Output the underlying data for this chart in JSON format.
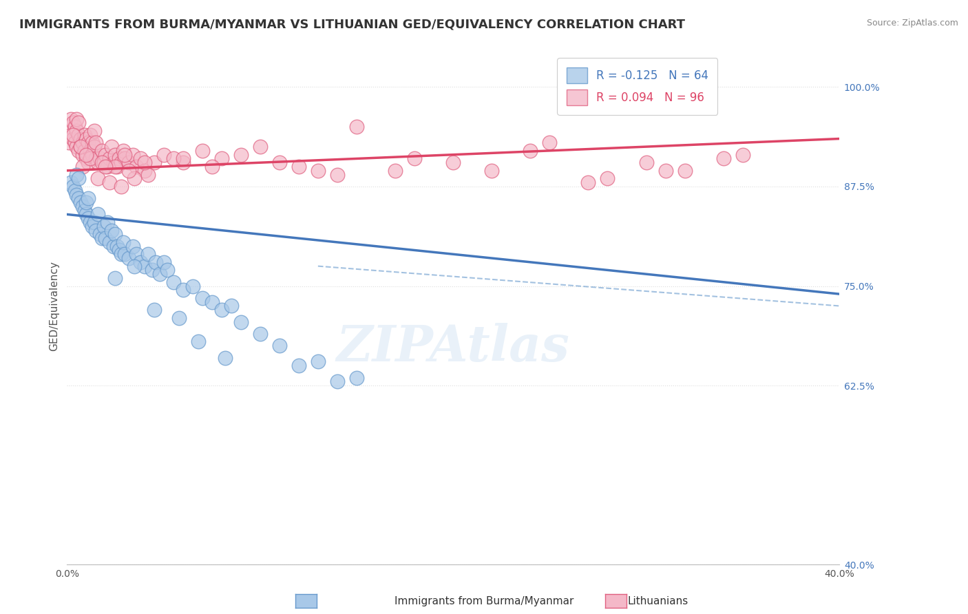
{
  "title": "IMMIGRANTS FROM BURMA/MYANMAR VS LITHUANIAN GED/EQUIVALENCY CORRELATION CHART",
  "source_text": "Source: ZipAtlas.com",
  "ylabel": "GED/Equivalency",
  "xlim": [
    0.0,
    40.0
  ],
  "ylim": [
    40.0,
    105.0
  ],
  "yticks": [
    40.0,
    62.5,
    75.0,
    87.5,
    100.0
  ],
  "ytick_labels": [
    "40.0%",
    "62.5%",
    "75.0%",
    "87.5%",
    "100.0%"
  ],
  "xticks": [
    0.0,
    10.0,
    20.0,
    30.0,
    40.0
  ],
  "xtick_labels": [
    "0.0%",
    "",
    "",
    "",
    "40.0%"
  ],
  "blue_color": "#a8c8e8",
  "pink_color": "#f4b8c8",
  "blue_edge_color": "#6699cc",
  "pink_edge_color": "#e06080",
  "blue_line_color": "#4477bb",
  "pink_line_color": "#dd4466",
  "background_color": "#ffffff",
  "grid_color": "#dddddd",
  "title_fontsize": 13,
  "axis_fontsize": 11,
  "tick_fontsize": 10,
  "watermark_text": "ZIPAtlas",
  "blue_line_x0": 0.0,
  "blue_line_y0": 84.0,
  "blue_line_x1": 40.0,
  "blue_line_y1": 74.0,
  "pink_line_x0": 0.0,
  "pink_line_y0": 89.5,
  "pink_line_x1": 40.0,
  "pink_line_y1": 93.5,
  "dash_line_x0": 13.0,
  "dash_line_y0": 77.5,
  "dash_line_x1": 40.0,
  "dash_line_y1": 72.5,
  "blue_scatter_x": [
    0.2,
    0.3,
    0.4,
    0.5,
    0.5,
    0.6,
    0.6,
    0.7,
    0.8,
    0.9,
    1.0,
    1.0,
    1.1,
    1.1,
    1.2,
    1.3,
    1.4,
    1.5,
    1.6,
    1.7,
    1.8,
    1.9,
    2.0,
    2.1,
    2.2,
    2.3,
    2.4,
    2.5,
    2.6,
    2.7,
    2.8,
    2.9,
    3.0,
    3.2,
    3.4,
    3.6,
    3.8,
    4.0,
    4.2,
    4.4,
    4.6,
    4.8,
    5.0,
    5.2,
    5.5,
    6.0,
    6.5,
    7.0,
    7.5,
    8.0,
    8.5,
    9.0,
    10.0,
    11.0,
    12.0,
    13.0,
    14.0,
    15.0,
    2.5,
    3.5,
    4.5,
    5.8,
    6.8,
    8.2
  ],
  "blue_scatter_y": [
    88.0,
    87.5,
    87.0,
    86.5,
    89.0,
    86.0,
    88.5,
    85.5,
    85.0,
    84.5,
    84.0,
    85.5,
    83.5,
    86.0,
    83.0,
    82.5,
    83.0,
    82.0,
    84.0,
    81.5,
    81.0,
    82.5,
    81.0,
    83.0,
    80.5,
    82.0,
    80.0,
    81.5,
    80.0,
    79.5,
    79.0,
    80.5,
    79.0,
    78.5,
    80.0,
    79.0,
    78.0,
    77.5,
    79.0,
    77.0,
    78.0,
    76.5,
    78.0,
    77.0,
    75.5,
    74.5,
    75.0,
    73.5,
    73.0,
    72.0,
    72.5,
    70.5,
    69.0,
    67.5,
    65.0,
    65.5,
    63.0,
    63.5,
    76.0,
    77.5,
    72.0,
    71.0,
    68.0,
    66.0
  ],
  "pink_scatter_x": [
    0.1,
    0.1,
    0.2,
    0.2,
    0.3,
    0.3,
    0.4,
    0.4,
    0.5,
    0.5,
    0.5,
    0.6,
    0.6,
    0.6,
    0.7,
    0.7,
    0.8,
    0.8,
    0.9,
    0.9,
    1.0,
    1.0,
    1.1,
    1.1,
    1.2,
    1.2,
    1.3,
    1.3,
    1.4,
    1.4,
    1.5,
    1.5,
    1.6,
    1.7,
    1.8,
    1.9,
    2.0,
    2.1,
    2.2,
    2.3,
    2.4,
    2.5,
    2.6,
    2.7,
    2.8,
    2.9,
    3.0,
    3.2,
    3.4,
    3.6,
    3.8,
    4.0,
    4.5,
    5.0,
    6.0,
    7.0,
    8.0,
    10.0,
    13.0,
    15.0,
    18.0,
    22.0,
    25.0,
    28.0,
    30.0,
    32.0,
    35.0,
    1.6,
    2.2,
    2.8,
    3.5,
    0.8,
    1.2,
    1.8,
    2.5,
    3.2,
    4.2,
    5.5,
    7.5,
    9.0,
    11.0,
    14.0,
    17.0,
    20.0,
    24.0,
    27.0,
    31.0,
    34.0,
    0.3,
    0.7,
    1.0,
    2.0,
    3.0,
    4.0,
    6.0,
    12.0
  ],
  "pink_scatter_y": [
    93.0,
    95.0,
    94.0,
    96.0,
    93.5,
    95.5,
    93.0,
    95.0,
    92.5,
    94.5,
    96.0,
    92.0,
    94.0,
    95.5,
    92.5,
    93.5,
    91.5,
    93.0,
    92.0,
    94.0,
    91.0,
    93.5,
    90.5,
    93.0,
    92.0,
    94.0,
    91.5,
    93.0,
    92.5,
    94.5,
    91.0,
    93.0,
    90.5,
    91.0,
    92.0,
    90.5,
    91.5,
    90.0,
    91.0,
    92.5,
    90.5,
    91.5,
    90.0,
    91.0,
    90.5,
    92.0,
    91.0,
    90.5,
    91.5,
    90.0,
    91.0,
    89.5,
    90.5,
    91.5,
    90.5,
    92.0,
    91.0,
    92.5,
    89.5,
    95.0,
    91.0,
    89.5,
    93.0,
    88.5,
    90.5,
    89.5,
    91.5,
    88.5,
    88.0,
    87.5,
    88.5,
    90.0,
    91.0,
    90.5,
    90.0,
    89.5,
    89.0,
    91.0,
    90.0,
    91.5,
    90.5,
    89.0,
    89.5,
    90.5,
    92.0,
    88.0,
    89.5,
    91.0,
    94.0,
    92.5,
    91.5,
    90.0,
    91.5,
    90.5,
    91.0,
    90.0
  ]
}
